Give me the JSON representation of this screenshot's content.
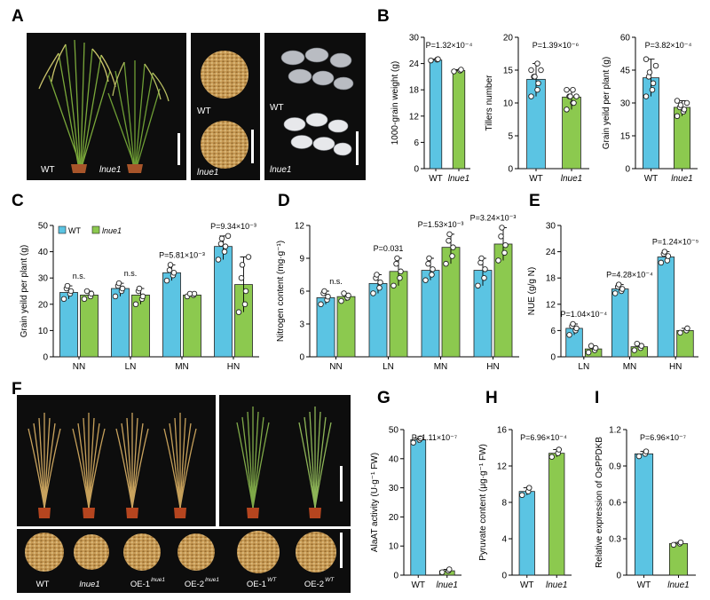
{
  "figure": {
    "panel_letters": [
      "A",
      "B",
      "C",
      "D",
      "E",
      "F",
      "G",
      "H",
      "I"
    ],
    "photo_labels": {
      "a_plants": [
        "WT",
        "lnue1"
      ],
      "a_grains": [
        "WT",
        "lnue1"
      ],
      "a_seeds": [
        "WT",
        "lnue1"
      ],
      "f_seeds": [
        "WT",
        "lnue1",
        "OE-1",
        "OE-2",
        "OE-1",
        "OE-2"
      ],
      "f_seed_sups": [
        "",
        "",
        "lnue1",
        "lnue1",
        "WT",
        "WT"
      ]
    },
    "colors": {
      "wt": "#5BC4E3",
      "mut": "#8CC94F",
      "photo_bg": "#0d0d0d",
      "pot": "#B5451F"
    }
  },
  "chart_data": [
    {
      "id": "B1",
      "type": "bar",
      "categories": [
        "WT",
        "lnue1"
      ],
      "values": [
        24.8,
        22.4
      ],
      "ylabel": "1000-grain weight (g)",
      "ylim": [
        0,
        30
      ],
      "yticks": [
        0,
        6,
        12,
        18,
        24,
        30
      ],
      "annotations": [
        "P=1.32×10⁻⁴"
      ],
      "points": [
        [
          24.7,
          24.9,
          25.0
        ],
        [
          22.2,
          22.4,
          22.6
        ]
      ]
    },
    {
      "id": "B2",
      "type": "bar",
      "categories": [
        "WT",
        "lnue1"
      ],
      "values": [
        13.6,
        10.9
      ],
      "ylabel": "Tillers number",
      "ylim": [
        0,
        20
      ],
      "yticks": [
        0,
        5,
        10,
        15,
        20
      ],
      "annotations": [
        "P=1.39×10⁻⁶"
      ],
      "points": [
        [
          11.0,
          12.0,
          13.0,
          14.0,
          14.0,
          15.0,
          15.0,
          16.0
        ],
        [
          9.0,
          10.0,
          10.0,
          11.0,
          11.0,
          11.0,
          12.0,
          12.0
        ]
      ]
    },
    {
      "id": "B3",
      "type": "bar",
      "categories": [
        "WT",
        "lnue1"
      ],
      "values": [
        41.5,
        28.0
      ],
      "ylabel": "Grain yeild per plant (g)",
      "ylim": [
        0,
        60
      ],
      "yticks": [
        0,
        15,
        30,
        45,
        60
      ],
      "annotations": [
        "P=3.82×10⁻⁴"
      ],
      "points": [
        [
          33.0,
          36.0,
          39.0,
          42.0,
          44.0,
          47.0,
          50.0
        ],
        [
          24.0,
          26.0,
          27.0,
          28.0,
          29.0,
          30.0,
          31.0
        ]
      ]
    },
    {
      "id": "C",
      "type": "bar",
      "categories": [
        "NN",
        "LN",
        "MN",
        "HN"
      ],
      "series": [
        {
          "name": "WT",
          "values": [
            24.5,
            26.0,
            32.0,
            42.0
          ]
        },
        {
          "name": "lnue1",
          "values": [
            23.5,
            23.5,
            23.5,
            27.5
          ]
        }
      ],
      "ylabel": "Grain yeild per plant (g)",
      "ylim": [
        0,
        50
      ],
      "yticks": [
        0,
        10,
        20,
        30,
        40,
        50
      ],
      "annotations": [
        "n.s.",
        "n.s.",
        "P=5.81×10⁻³",
        "P=9.34×10⁻³"
      ],
      "legend": "top-left",
      "points": [
        [
          [
            22,
            24,
            25,
            26,
            27
          ],
          [
            22,
            23,
            24,
            25
          ]
        ],
        [
          [
            23,
            25,
            26,
            27,
            28
          ],
          [
            20,
            22,
            23,
            25,
            26
          ]
        ],
        [
          [
            29,
            31,
            32,
            33,
            35
          ],
          [
            23,
            23.5,
            24,
            24
          ]
        ],
        [
          [
            37,
            40,
            42,
            43,
            45,
            46
          ],
          [
            17,
            20,
            25,
            30,
            35,
            38
          ]
        ]
      ]
    },
    {
      "id": "D",
      "type": "bar",
      "categories": [
        "NN",
        "LN",
        "MN",
        "HN"
      ],
      "series": [
        {
          "name": "WT",
          "values": [
            5.4,
            6.7,
            7.9,
            7.9
          ]
        },
        {
          "name": "lnue1",
          "values": [
            5.5,
            7.8,
            10.0,
            10.3
          ]
        }
      ],
      "ylabel": "Nitrogen content (mg·g⁻¹)",
      "ylim": [
        0,
        12
      ],
      "yticks": [
        0,
        3,
        6,
        9,
        12
      ],
      "annotations": [
        "n.s.",
        "P=0.031",
        "P=1.53×10⁻³",
        "P=3.24×10⁻³"
      ],
      "points": [
        [
          [
            4.8,
            5.2,
            5.5,
            5.8,
            6.0
          ],
          [
            5.1,
            5.4,
            5.6,
            5.8
          ]
        ],
        [
          [
            5.8,
            6.3,
            6.8,
            7.2,
            7.5
          ],
          [
            6.5,
            7.2,
            7.8,
            8.5,
            9.0
          ]
        ],
        [
          [
            7.0,
            7.5,
            8.0,
            8.5,
            9.0
          ],
          [
            8.5,
            9.2,
            10.0,
            10.6,
            11.2
          ]
        ],
        [
          [
            6.5,
            7.2,
            8.0,
            8.6,
            9.0
          ],
          [
            8.8,
            9.5,
            10.2,
            11.0,
            11.8
          ]
        ]
      ]
    },
    {
      "id": "E",
      "type": "bar",
      "categories": [
        "LN",
        "MN",
        "HN"
      ],
      "series": [
        {
          "name": "WT",
          "values": [
            6.5,
            15.5,
            22.8
          ]
        },
        {
          "name": "lnue1",
          "values": [
            1.8,
            2.3,
            6.0
          ]
        }
      ],
      "ylabel": "NUE (g/g N)",
      "ylim": [
        0,
        30
      ],
      "yticks": [
        0,
        6,
        12,
        18,
        24,
        30
      ],
      "annotations": [
        "P=1.04×10⁻⁴",
        "P=4.28×10⁻⁴",
        "P=1.24×10⁻⁵"
      ],
      "points": [
        [
          [
            5.0,
            6.0,
            6.5,
            7.0,
            7.5
          ],
          [
            1.0,
            1.5,
            2.0,
            2.5
          ]
        ],
        [
          [
            14.5,
            15.0,
            15.5,
            16.0,
            16.5
          ],
          [
            1.5,
            2.0,
            2.5,
            3.0
          ]
        ],
        [
          [
            21.5,
            22.0,
            23.0,
            23.5,
            24.0
          ],
          [
            5.5,
            6.0,
            6.5
          ]
        ]
      ]
    },
    {
      "id": "G",
      "type": "bar",
      "categories": [
        "WT",
        "lnue1"
      ],
      "values": [
        46.5,
        1.5
      ],
      "ylabel": "AlaAT activity (U·g⁻¹ FW)",
      "ylim": [
        0,
        50
      ],
      "yticks": [
        0,
        10,
        20,
        30,
        40,
        50
      ],
      "annotations": [
        "P=1.11×10⁻⁷"
      ],
      "points": [
        [
          45.5,
          46.5,
          47.0
        ],
        [
          1.0,
          1.5,
          2.0
        ]
      ]
    },
    {
      "id": "H",
      "type": "bar",
      "categories": [
        "WT",
        "lnue1"
      ],
      "values": [
        9.2,
        13.4
      ],
      "ylabel": "Pyruvate content (μg·g⁻¹ FW)",
      "ylim": [
        0,
        16
      ],
      "yticks": [
        0,
        4,
        8,
        12,
        16
      ],
      "annotations": [
        "P=6.96×10⁻⁴"
      ],
      "points": [
        [
          8.8,
          9.2,
          9.6
        ],
        [
          13.0,
          13.4,
          13.8
        ]
      ]
    },
    {
      "id": "I",
      "type": "bar",
      "categories": [
        "WT",
        "lnue1"
      ],
      "values": [
        1.0,
        0.26
      ],
      "ylabel": "Relative expression of OsPPDKB",
      "ylim": [
        0,
        1.2
      ],
      "yticks": [
        0,
        0.3,
        0.6,
        0.9,
        1.2
      ],
      "annotations": [
        "P=6.96×10⁻⁷"
      ],
      "points": [
        [
          0.98,
          1.0,
          1.02
        ],
        [
          0.25,
          0.26,
          0.27
        ]
      ]
    }
  ]
}
